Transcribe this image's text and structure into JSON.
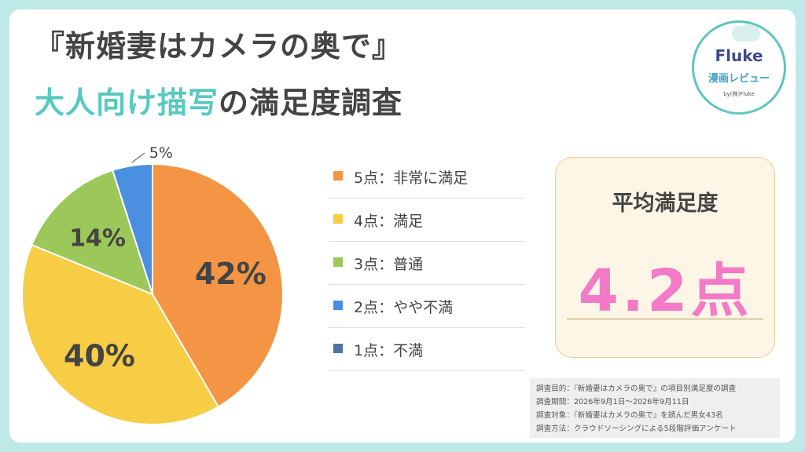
{
  "title": {
    "line1": "『新婚妻はカメラの奥で』",
    "line2_highlight": "大人向け描写",
    "line2_rest": "の満足度調査"
  },
  "logo": {
    "name": "Fluke",
    "sub": "漫画レビュー",
    "by": "by(株)Fluke"
  },
  "colors": {
    "accent_teal": "#57c9bf",
    "highlight_pink": "#f27ac6",
    "background": "#bfe9e6"
  },
  "chart_data": {
    "type": "pie",
    "title": "",
    "start_angle_deg": 0,
    "direction": "clockwise",
    "slices": [
      {
        "label": "5点：非常に満足",
        "value": 42,
        "display": "42%",
        "color": "#f39545"
      },
      {
        "label": "4点：満足",
        "value": 40,
        "display": "40%",
        "color": "#f6cd45"
      },
      {
        "label": "3点：普通",
        "value": 14,
        "display": "14%",
        "color": "#9bc858"
      },
      {
        "label": "2点：やや不満",
        "value": 5,
        "display": "5%",
        "color": "#4a8fe0"
      },
      {
        "label": "1点：不満",
        "value": 0,
        "display": "",
        "color": "#4f73a3"
      }
    ],
    "legend_position": "right"
  },
  "average": {
    "title": "平均満足度",
    "value": "4.2点"
  },
  "notes": [
    "調査目的：『新婚妻はカメラの奥で』の項目別満足度の調査",
    "調査期間：2026年9月1日～2026年9月11日",
    "調査対象：『新婚妻はカメラの奥で』を読んだ男女43名",
    "調査方法：クラウドソーシングによる5段階評価アンケート"
  ]
}
